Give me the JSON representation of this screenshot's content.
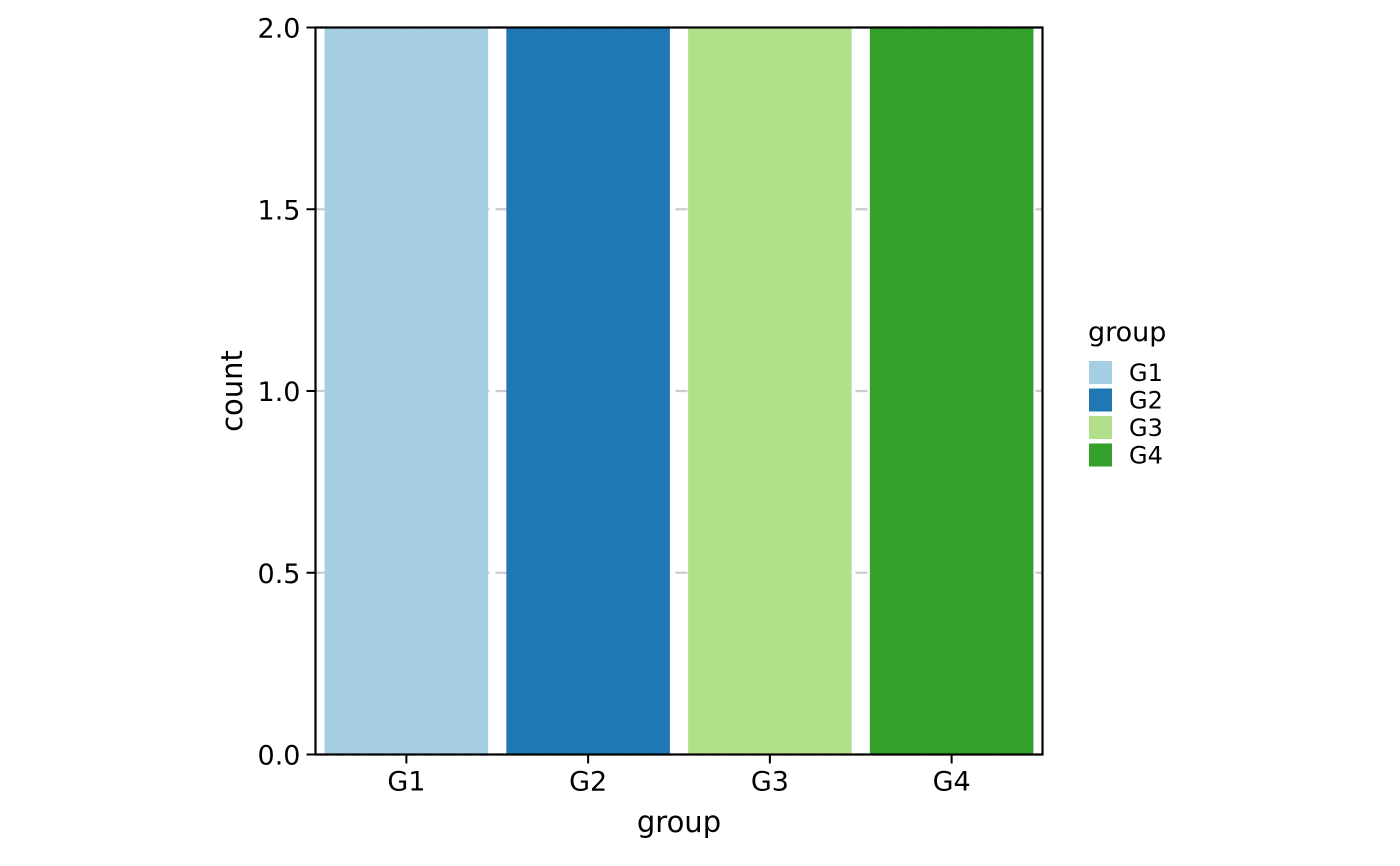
{
  "chart_data": {
    "type": "bar",
    "categories": [
      "G1",
      "G2",
      "G3",
      "G4"
    ],
    "values": [
      2,
      2,
      2,
      2
    ],
    "colors": [
      "#A6CEE3",
      "#1F78B4",
      "#B2DF8A",
      "#33A02C"
    ],
    "xlabel": "group",
    "ylabel": "count",
    "ylim": [
      0,
      2
    ],
    "yticks": [
      "0.0",
      "0.5",
      "1.0",
      "1.5",
      "2.0"
    ],
    "grid": "horizontal",
    "legend": {
      "title": "group",
      "entries": [
        "G1",
        "G2",
        "G3",
        "G4"
      ],
      "position": "right"
    }
  }
}
